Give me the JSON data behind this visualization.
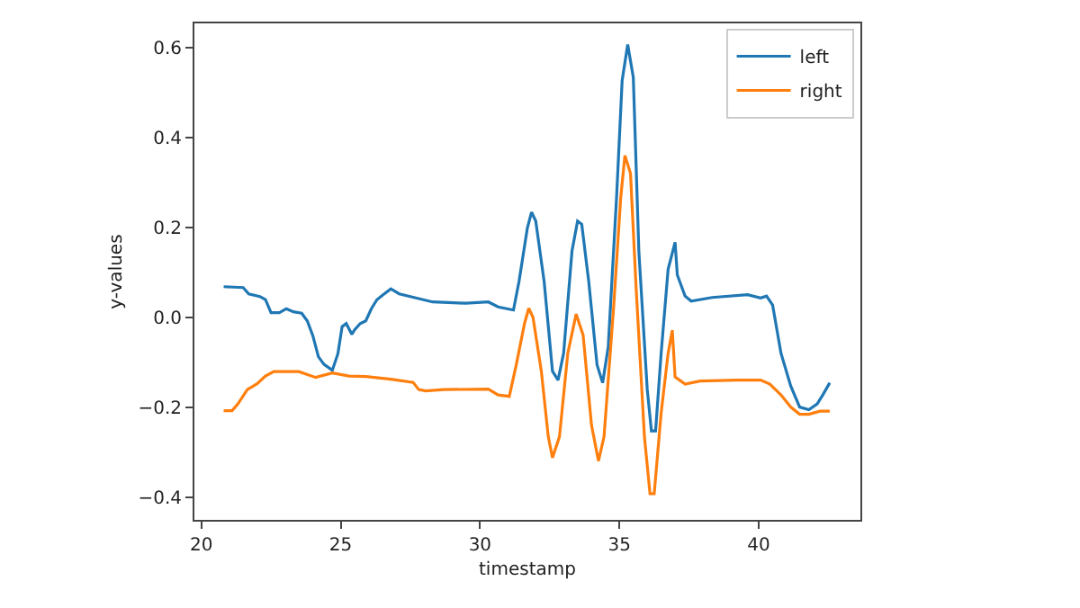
{
  "chart_data": {
    "type": "line",
    "xlabel": "timestamp",
    "ylabel": "y-values",
    "xlim": [
      19.75,
      43.65
    ],
    "ylim": [
      -0.45,
      0.655
    ],
    "xticks": [
      20,
      25,
      30,
      35,
      40
    ],
    "yticks": [
      {
        "value": -0.4,
        "label": "−0.4"
      },
      {
        "value": -0.2,
        "label": "−0.2"
      },
      {
        "value": 0,
        "label": "0.0"
      },
      {
        "value": 0.2,
        "label": "0.2"
      },
      {
        "value": 0.4,
        "label": "0.4"
      },
      {
        "value": 0.6,
        "label": "0.6"
      }
    ],
    "legend": "top right",
    "marker": "none",
    "line_style": "solid",
    "series": [
      {
        "name": "left",
        "color": "#1f77b4",
        "x": [
          20.8,
          21.5,
          21.7,
          22.1,
          22.3,
          22.5,
          22.8,
          23.05,
          23.3,
          23.6,
          23.8,
          24.0,
          24.2,
          24.4,
          24.7,
          24.9,
          25.05,
          25.2,
          25.4,
          25.5,
          25.7,
          25.9,
          26.1,
          26.3,
          26.5,
          26.8,
          27.1,
          27.5,
          28.3,
          29.5,
          30.3,
          30.65,
          31.2,
          31.4,
          31.7,
          31.85,
          32.0,
          32.3,
          32.6,
          32.8,
          33.0,
          33.3,
          33.5,
          33.65,
          33.9,
          34.2,
          34.4,
          34.6,
          34.9,
          35.1,
          35.3,
          35.5,
          35.7,
          36.0,
          36.15,
          36.3,
          36.5,
          36.75,
          37.0,
          37.08,
          37.36,
          37.58,
          38.33,
          39.6,
          40.07,
          40.28,
          40.5,
          40.8,
          41.15,
          41.47,
          41.8,
          42.1,
          42.3,
          42.55
        ],
        "values": [
          0.069,
          0.067,
          0.053,
          0.047,
          0.04,
          0.011,
          0.011,
          0.02,
          0.013,
          0.01,
          -0.007,
          -0.04,
          -0.087,
          -0.104,
          -0.117,
          -0.08,
          -0.02,
          -0.013,
          -0.037,
          -0.027,
          -0.013,
          -0.007,
          0.02,
          0.04,
          0.05,
          0.064,
          0.053,
          0.047,
          0.035,
          0.032,
          0.035,
          0.024,
          0.017,
          0.081,
          0.2,
          0.235,
          0.215,
          0.081,
          -0.119,
          -0.139,
          -0.079,
          0.148,
          0.215,
          0.208,
          0.081,
          -0.105,
          -0.145,
          -0.065,
          0.268,
          0.528,
          0.608,
          0.535,
          0.148,
          -0.159,
          -0.252,
          -0.252,
          -0.079,
          0.108,
          0.168,
          0.095,
          0.048,
          0.037,
          0.045,
          0.051,
          0.044,
          0.048,
          0.028,
          -0.079,
          -0.152,
          -0.199,
          -0.205,
          -0.192,
          -0.172,
          -0.145
        ]
      },
      {
        "name": "right",
        "color": "#ff7f0e",
        "x": [
          20.8,
          21.1,
          21.3,
          21.65,
          22.0,
          22.3,
          22.6,
          23.1,
          23.5,
          24.1,
          24.7,
          25.3,
          25.9,
          26.8,
          27.6,
          27.8,
          28.05,
          28.7,
          30.3,
          30.65,
          31.05,
          31.3,
          31.6,
          31.75,
          31.9,
          32.2,
          32.45,
          32.6,
          32.85,
          33.15,
          33.45,
          33.7,
          34.0,
          34.25,
          34.45,
          34.8,
          35.05,
          35.2,
          35.4,
          35.6,
          35.9,
          36.1,
          36.25,
          36.5,
          36.75,
          36.9,
          37.0,
          37.36,
          37.9,
          39.2,
          40.07,
          40.4,
          40.8,
          41.15,
          41.47,
          41.8,
          42.2,
          42.55
        ],
        "values": [
          -0.207,
          -0.207,
          -0.193,
          -0.16,
          -0.147,
          -0.13,
          -0.12,
          -0.12,
          -0.12,
          -0.133,
          -0.123,
          -0.13,
          -0.131,
          -0.137,
          -0.144,
          -0.16,
          -0.163,
          -0.16,
          -0.159,
          -0.172,
          -0.175,
          -0.105,
          -0.012,
          0.021,
          0.001,
          -0.119,
          -0.265,
          -0.312,
          -0.265,
          -0.079,
          0.008,
          -0.039,
          -0.239,
          -0.319,
          -0.265,
          0.028,
          0.268,
          0.361,
          0.321,
          0.068,
          -0.265,
          -0.392,
          -0.392,
          -0.212,
          -0.079,
          -0.028,
          -0.132,
          -0.148,
          -0.141,
          -0.139,
          -0.139,
          -0.148,
          -0.172,
          -0.199,
          -0.215,
          -0.215,
          -0.208,
          -0.208
        ]
      }
    ]
  }
}
